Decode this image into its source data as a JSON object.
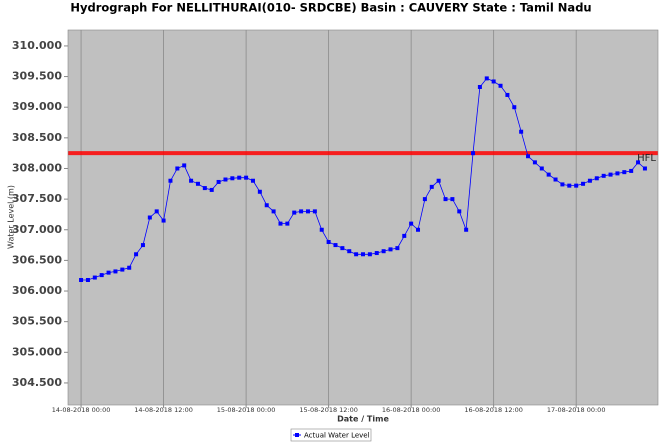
{
  "chart_data": {
    "type": "line",
    "title": "Hydrograph For NELLITHURAI(010- SRDCBE) Basin : CAUVERY State : Tamil Nadu",
    "x_label": "Date / Time",
    "y_label": "Water Level (m)",
    "x": [
      "14-08-2018 00:00",
      "14-08-2018 01:00",
      "14-08-2018 02:00",
      "14-08-2018 03:00",
      "14-08-2018 04:00",
      "14-08-2018 05:00",
      "14-08-2018 06:00",
      "14-08-2018 07:00",
      "14-08-2018 08:00",
      "14-08-2018 09:00",
      "14-08-2018 10:00",
      "14-08-2018 11:00",
      "14-08-2018 12:00",
      "14-08-2018 13:00",
      "14-08-2018 14:00",
      "14-08-2018 15:00",
      "14-08-2018 16:00",
      "14-08-2018 17:00",
      "14-08-2018 18:00",
      "14-08-2018 19:00",
      "14-08-2018 20:00",
      "14-08-2018 21:00",
      "14-08-2018 22:00",
      "14-08-2018 23:00",
      "15-08-2018 00:00",
      "15-08-2018 01:00",
      "15-08-2018 02:00",
      "15-08-2018 03:00",
      "15-08-2018 04:00",
      "15-08-2018 05:00",
      "15-08-2018 06:00",
      "15-08-2018 07:00",
      "15-08-2018 08:00",
      "15-08-2018 09:00",
      "15-08-2018 10:00",
      "15-08-2018 11:00",
      "15-08-2018 12:00",
      "15-08-2018 13:00",
      "15-08-2018 14:00",
      "15-08-2018 15:00",
      "15-08-2018 16:00",
      "15-08-2018 17:00",
      "15-08-2018 18:00",
      "15-08-2018 19:00",
      "15-08-2018 20:00",
      "15-08-2018 21:00",
      "15-08-2018 22:00",
      "15-08-2018 23:00",
      "16-08-2018 00:00",
      "16-08-2018 01:00",
      "16-08-2018 02:00",
      "16-08-2018 03:00",
      "16-08-2018 04:00",
      "16-08-2018 05:00",
      "16-08-2018 06:00",
      "16-08-2018 07:00",
      "16-08-2018 08:00",
      "16-08-2018 09:00",
      "16-08-2018 10:00",
      "16-08-2018 11:00",
      "16-08-2018 12:00",
      "16-08-2018 13:00",
      "16-08-2018 14:00",
      "16-08-2018 15:00",
      "16-08-2018 16:00",
      "16-08-2018 17:00",
      "16-08-2018 18:00",
      "16-08-2018 19:00",
      "16-08-2018 20:00",
      "16-08-2018 21:00",
      "16-08-2018 22:00",
      "16-08-2018 23:00",
      "17-08-2018 00:00",
      "17-08-2018 01:00",
      "17-08-2018 02:00",
      "17-08-2018 03:00",
      "17-08-2018 04:00",
      "17-08-2018 05:00",
      "17-08-2018 06:00",
      "17-08-2018 07:00",
      "17-08-2018 08:00",
      "17-08-2018 09:00",
      "17-08-2018 10:00"
    ],
    "series": [
      {
        "name": "Actual Water Level",
        "color": "#0000ff",
        "values": [
          306.18,
          306.18,
          306.22,
          306.26,
          306.3,
          306.32,
          306.35,
          306.38,
          306.6,
          306.75,
          307.2,
          307.3,
          307.15,
          307.8,
          308.0,
          308.05,
          307.8,
          307.75,
          307.68,
          307.65,
          307.78,
          307.82,
          307.84,
          307.85,
          307.85,
          307.8,
          307.62,
          307.4,
          307.3,
          307.1,
          307.1,
          307.28,
          307.3,
          307.3,
          307.3,
          307.0,
          306.8,
          306.75,
          306.7,
          306.65,
          306.6,
          306.6,
          306.6,
          306.62,
          306.65,
          306.68,
          306.7,
          306.9,
          307.1,
          307.0,
          307.5,
          307.7,
          307.8,
          307.5,
          307.5,
          307.3,
          307.0,
          308.25,
          309.33,
          309.47,
          309.42,
          309.35,
          309.2,
          309.0,
          308.6,
          308.2,
          308.1,
          308.0,
          307.9,
          307.82,
          307.74,
          307.72,
          307.72,
          307.75,
          307.8,
          307.84,
          307.88,
          307.9,
          307.92,
          307.94,
          307.96,
          308.1,
          308.0
        ]
      }
    ],
    "hfl": {
      "label": "HFL",
      "value": 308.25,
      "color": "#ff0000"
    },
    "xlim": [
      "13-08-2018 22:06",
      "17-08-2018 11:54"
    ],
    "xticks": [
      "14-08-2018 00:00",
      "14-08-2018 12:00",
      "15-08-2018 00:00",
      "15-08-2018 12:00",
      "16-08-2018 00:00",
      "16-08-2018 12:00",
      "17-08-2018 00:00"
    ],
    "ylim": [
      304.14,
      310.26
    ],
    "yticks": [
      {
        "value": 304.5,
        "label": "304.500"
      },
      {
        "value": 305,
        "label": "305.000"
      },
      {
        "value": 305.5,
        "label": "305.500"
      },
      {
        "value": 306,
        "label": "306.000"
      },
      {
        "value": 306.5,
        "label": "306.500"
      },
      {
        "value": 307,
        "label": "307.000"
      },
      {
        "value": 307.5,
        "label": "307.500"
      },
      {
        "value": 308,
        "label": "308.000"
      },
      {
        "value": 308.5,
        "label": "308.500"
      },
      {
        "value": 309,
        "label": "309.000"
      },
      {
        "value": 309.5,
        "label": "309.500"
      },
      {
        "value": 310,
        "label": "310.000"
      }
    ],
    "grid": "x",
    "legend": "bottom"
  }
}
